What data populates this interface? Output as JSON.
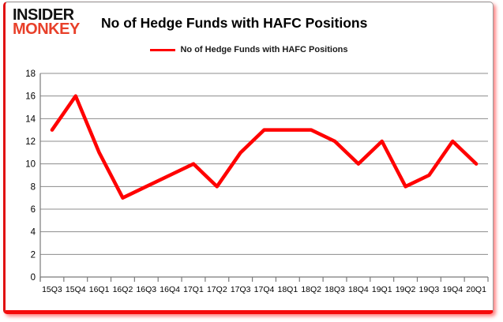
{
  "logo": {
    "line1": "INSIDER",
    "line2": "MONKEY"
  },
  "header": {
    "title": "No of Hedge Funds with HAFC Positions"
  },
  "legend": {
    "label": "No of Hedge Funds with HAFC Positions",
    "color": "#ff0000"
  },
  "colors": {
    "line": "#ff0000",
    "grid": "#8c8c8c",
    "axis": "#7a7a7a",
    "text": "#000000",
    "frame_red": "#f50a0a",
    "logo_red": "#e8402a"
  },
  "chart_data": {
    "type": "line",
    "title": "No of Hedge Funds with HAFC Positions",
    "categories": [
      "15Q3",
      "15Q4",
      "16Q1",
      "16Q2",
      "16Q3",
      "16Q4",
      "17Q1",
      "17Q2",
      "17Q3",
      "17Q4",
      "18Q1",
      "18Q2",
      "18Q3",
      "18Q4",
      "19Q1",
      "19Q2",
      "19Q3",
      "19Q4",
      "20Q1"
    ],
    "series": [
      {
        "name": "No of Hedge Funds with HAFC Positions",
        "color": "#ff0000",
        "values": [
          13,
          16,
          11,
          7,
          8,
          9,
          10,
          8,
          11,
          13,
          13,
          13,
          12,
          10,
          12,
          8,
          9,
          12,
          10
        ]
      }
    ],
    "xlabel": "",
    "ylabel": "",
    "ylim": [
      0,
      18
    ],
    "yticks": [
      0,
      2,
      4,
      6,
      8,
      10,
      12,
      14,
      16,
      18
    ],
    "grid": true,
    "legend_position": "top-center"
  }
}
